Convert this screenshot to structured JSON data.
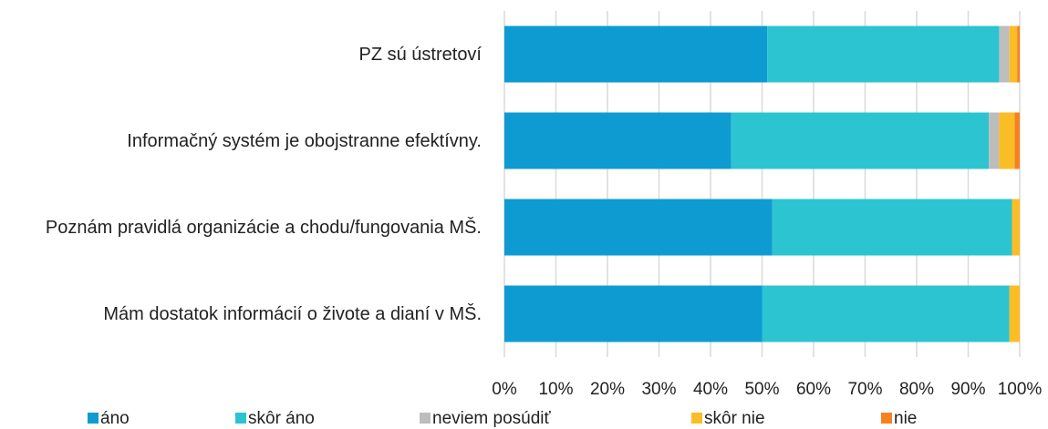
{
  "chart_data": {
    "type": "stacked_barh",
    "categories": [
      "PZ sú ústretoví",
      "Informačný systém je obojstranne efektívny.",
      "Poznám pravidlá organizácie a chodu/fungovania MŠ.",
      "Mám dostatok informácií o živote a dianí v MŠ."
    ],
    "series": [
      {
        "name": "áno",
        "color": "#0e9bd2",
        "values": [
          51,
          44,
          52,
          50
        ]
      },
      {
        "name": "skôr áno",
        "color": "#2cc4d1",
        "values": [
          45,
          50,
          46.5,
          48
        ]
      },
      {
        "name": "neviem posúdiť",
        "color": "#bdbdbd",
        "values": [
          2,
          2,
          0,
          0
        ]
      },
      {
        "name": "skôr nie",
        "color": "#fbbd26",
        "values": [
          1.5,
          3,
          1.5,
          2
        ]
      },
      {
        "name": "nie",
        "color": "#f5821f",
        "values": [
          0.5,
          1,
          0,
          0
        ]
      }
    ],
    "xlim": [
      0,
      100
    ],
    "xticks": [
      {
        "value": 0,
        "label": "0%"
      },
      {
        "value": 10,
        "label": "10%"
      },
      {
        "value": 20,
        "label": "20%"
      },
      {
        "value": 30,
        "label": "30%"
      },
      {
        "value": 40,
        "label": "40%"
      },
      {
        "value": 50,
        "label": "50%"
      },
      {
        "value": 60,
        "label": "60%"
      },
      {
        "value": 70,
        "label": "70%"
      },
      {
        "value": 80,
        "label": "80%"
      },
      {
        "value": 90,
        "label": "90%"
      },
      {
        "value": 100,
        "label": "100%"
      }
    ],
    "grid": true,
    "legend": "bottom"
  }
}
